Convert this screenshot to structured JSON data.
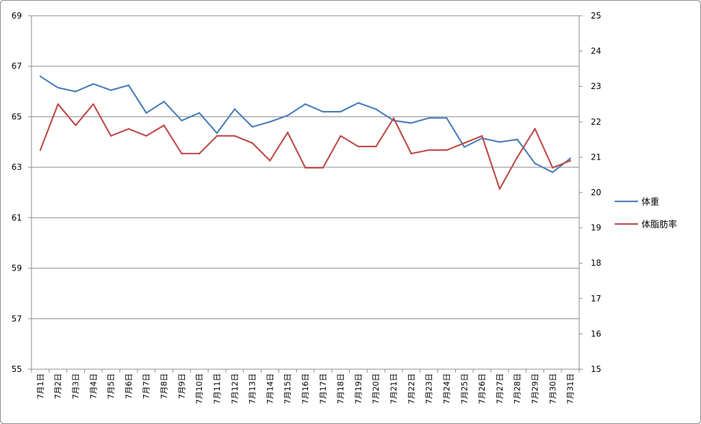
{
  "chart_data": {
    "type": "line",
    "categories": [
      "7月1日",
      "7月2日",
      "7月3日",
      "7月4日",
      "7月5日",
      "7月6日",
      "7月7日",
      "7月8日",
      "7月9日",
      "7月10日",
      "7月11日",
      "7月12日",
      "7月13日",
      "7月14日",
      "7月15日",
      "7月16日",
      "7月17日",
      "7月18日",
      "7月19日",
      "7月20日",
      "7月21日",
      "7月22日",
      "7月23日",
      "7月24日",
      "7月25日",
      "7月26日",
      "7月27日",
      "7月28日",
      "7月29日",
      "7月30日",
      "7月31日"
    ],
    "series": [
      {
        "name": "体重",
        "axis": "left",
        "color": "#4a7ebb",
        "values": [
          66.6,
          66.15,
          66.0,
          66.3,
          66.05,
          66.25,
          65.15,
          65.6,
          64.85,
          65.15,
          64.35,
          65.3,
          64.6,
          64.8,
          65.05,
          65.5,
          65.2,
          65.2,
          65.55,
          65.3,
          64.85,
          64.75,
          64.95,
          64.95,
          63.8,
          64.15,
          64.0,
          64.1,
          63.15,
          62.8,
          63.35
        ]
      },
      {
        "name": "体脂肪率",
        "axis": "right",
        "color": "#be4b48",
        "values": [
          21.2,
          22.5,
          21.9,
          22.5,
          21.6,
          21.8,
          21.6,
          21.9,
          21.1,
          21.1,
          21.6,
          21.6,
          21.4,
          20.9,
          21.7,
          20.7,
          20.7,
          21.6,
          21.3,
          21.3,
          22.1,
          21.1,
          21.2,
          21.2,
          21.4,
          21.6,
          20.1,
          21.0,
          21.8,
          20.7,
          20.9
        ]
      }
    ],
    "y_left": {
      "min": 55,
      "max": 69,
      "step": 2,
      "ticks": [
        "55",
        "57",
        "59",
        "61",
        "63",
        "65",
        "67",
        "69"
      ]
    },
    "y_right": {
      "min": 15,
      "max": 25,
      "step": 1,
      "ticks": [
        "15",
        "16",
        "17",
        "18",
        "19",
        "20",
        "21",
        "22",
        "23",
        "24",
        "25"
      ]
    },
    "grid": true,
    "legend_position": "right"
  }
}
